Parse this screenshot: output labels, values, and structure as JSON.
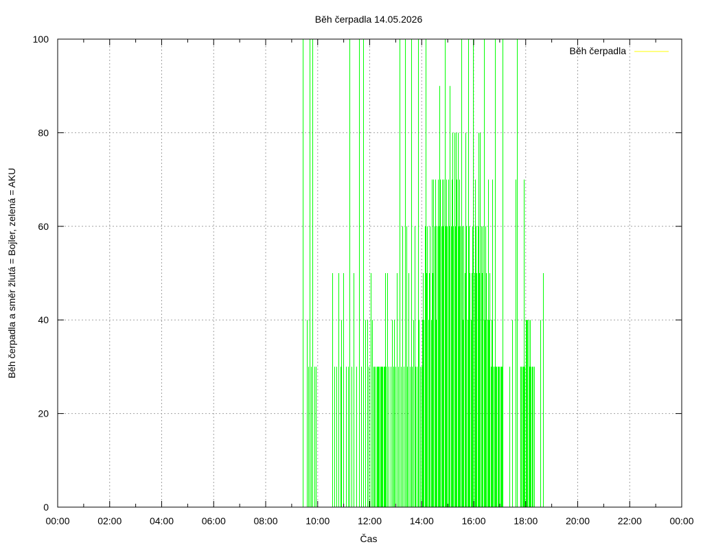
{
  "chart_data": {
    "type": "bar",
    "title": "Běh čerpadla 14.05.2026",
    "xlabel": "Čas",
    "ylabel": "Běh čerpadla a směr žlutá = Bojler, zelená = AKU",
    "xlim_hours": [
      0,
      24
    ],
    "ylim": [
      0,
      100
    ],
    "x_ticks": [
      "00:00",
      "02:00",
      "04:00",
      "06:00",
      "08:00",
      "10:00",
      "12:00",
      "14:00",
      "16:00",
      "18:00",
      "20:00",
      "22:00",
      "00:00"
    ],
    "y_ticks": [
      "0",
      "20",
      "40",
      "60",
      "80",
      "100"
    ],
    "grid": true,
    "legend": {
      "position": "top-right",
      "entries": [
        {
          "label": "Běh čerpadla",
          "color": "#ffff00"
        }
      ]
    },
    "colors": {
      "bars": "#00ff00",
      "legend_line": "#ffff00",
      "grid": "#a0a0a0"
    },
    "series": [
      {
        "color": "#00ff00",
        "points": [
          [
            "09:25",
            30
          ],
          [
            "09:26",
            100
          ],
          [
            "09:35",
            40
          ],
          [
            "09:39",
            30
          ],
          [
            "09:41",
            100
          ],
          [
            "09:44",
            30
          ],
          [
            "09:47",
            100
          ],
          [
            "09:52",
            30
          ],
          [
            "09:56",
            30
          ],
          [
            "10:34",
            50
          ],
          [
            "10:39",
            30
          ],
          [
            "10:43",
            30
          ],
          [
            "10:48",
            50
          ],
          [
            "10:52",
            30
          ],
          [
            "10:55",
            40
          ],
          [
            "10:59",
            50
          ],
          [
            "11:05",
            30
          ],
          [
            "11:10",
            30
          ],
          [
            "11:14",
            100
          ],
          [
            "11:18",
            30
          ],
          [
            "11:23",
            50
          ],
          [
            "11:29",
            30
          ],
          [
            "11:35",
            100
          ],
          [
            "11:40",
            30
          ],
          [
            "11:45",
            100
          ],
          [
            "11:50",
            40
          ],
          [
            "11:54",
            40
          ],
          [
            "11:58",
            30
          ],
          [
            "12:02",
            50
          ],
          [
            "12:06",
            40
          ],
          [
            "12:09",
            30
          ],
          [
            "12:11",
            30
          ],
          [
            "12:13",
            30
          ],
          [
            "12:16",
            30
          ],
          [
            "12:18",
            30
          ],
          [
            "12:20",
            30
          ],
          [
            "12:22",
            30
          ],
          [
            "12:24",
            30
          ],
          [
            "12:26",
            30
          ],
          [
            "12:28",
            30
          ],
          [
            "12:30",
            30
          ],
          [
            "12:32",
            30
          ],
          [
            "12:34",
            30
          ],
          [
            "12:36",
            50
          ],
          [
            "12:38",
            30
          ],
          [
            "12:41",
            50
          ],
          [
            "12:44",
            30
          ],
          [
            "12:48",
            30
          ],
          [
            "12:51",
            40
          ],
          [
            "12:54",
            30
          ],
          [
            "12:56",
            40
          ],
          [
            "12:59",
            30
          ],
          [
            "13:03",
            50
          ],
          [
            "13:06",
            30
          ],
          [
            "13:09",
            100
          ],
          [
            "13:12",
            30
          ],
          [
            "13:15",
            60
          ],
          [
            "13:18",
            30
          ],
          [
            "13:21",
            100
          ],
          [
            "13:24",
            60
          ],
          [
            "13:27",
            30
          ],
          [
            "13:30",
            50
          ],
          [
            "13:33",
            30
          ],
          [
            "13:36",
            100
          ],
          [
            "13:38",
            30
          ],
          [
            "13:40",
            40
          ],
          [
            "13:43",
            60
          ],
          [
            "13:46",
            30
          ],
          [
            "13:48",
            30
          ],
          [
            "13:51",
            100
          ],
          [
            "13:54",
            40
          ],
          [
            "13:57",
            30
          ],
          [
            "13:59",
            30
          ],
          [
            "14:01",
            40
          ],
          [
            "14:03",
            50
          ],
          [
            "14:05",
            40
          ],
          [
            "14:07",
            60
          ],
          [
            "14:09",
            100
          ],
          [
            "14:11",
            50
          ],
          [
            "14:13",
            60
          ],
          [
            "14:15",
            40
          ],
          [
            "14:17",
            50
          ],
          [
            "14:19",
            60
          ],
          [
            "14:21",
            40
          ],
          [
            "14:23",
            70
          ],
          [
            "14:25",
            50
          ],
          [
            "14:27",
            70
          ],
          [
            "14:29",
            60
          ],
          [
            "14:31",
            70
          ],
          [
            "14:33",
            40
          ],
          [
            "14:35",
            60
          ],
          [
            "14:37",
            70
          ],
          [
            "14:39",
            60
          ],
          [
            "14:41",
            90
          ],
          [
            "14:43",
            70
          ],
          [
            "14:45",
            60
          ],
          [
            "14:47",
            70
          ],
          [
            "14:49",
            60
          ],
          [
            "14:51",
            70
          ],
          [
            "14:53",
            100
          ],
          [
            "14:55",
            60
          ],
          [
            "14:57",
            70
          ],
          [
            "14:59",
            60
          ],
          [
            "15:01",
            70
          ],
          [
            "15:03",
            60
          ],
          [
            "15:05",
            90
          ],
          [
            "15:07",
            60
          ],
          [
            "15:09",
            70
          ],
          [
            "15:11",
            80
          ],
          [
            "15:13",
            60
          ],
          [
            "15:15",
            80
          ],
          [
            "15:17",
            60
          ],
          [
            "15:19",
            80
          ],
          [
            "15:21",
            70
          ],
          [
            "15:23",
            80
          ],
          [
            "15:25",
            60
          ],
          [
            "15:27",
            70
          ],
          [
            "15:29",
            60
          ],
          [
            "15:31",
            100
          ],
          [
            "15:33",
            60
          ],
          [
            "15:35",
            40
          ],
          [
            "15:37",
            60
          ],
          [
            "15:39",
            50
          ],
          [
            "15:41",
            80
          ],
          [
            "15:43",
            60
          ],
          [
            "15:45",
            40
          ],
          [
            "15:47",
            100
          ],
          [
            "15:49",
            60
          ],
          [
            "15:51",
            50
          ],
          [
            "15:53",
            40
          ],
          [
            "15:55",
            50
          ],
          [
            "15:57",
            60
          ],
          [
            "15:59",
            100
          ],
          [
            "16:01",
            50
          ],
          [
            "16:03",
            70
          ],
          [
            "16:05",
            60
          ],
          [
            "16:07",
            50
          ],
          [
            "16:09",
            60
          ],
          [
            "16:11",
            80
          ],
          [
            "16:13",
            50
          ],
          [
            "16:15",
            80
          ],
          [
            "16:17",
            60
          ],
          [
            "16:19",
            50
          ],
          [
            "16:21",
            60
          ],
          [
            "16:23",
            100
          ],
          [
            "16:25",
            40
          ],
          [
            "16:27",
            60
          ],
          [
            "16:29",
            50
          ],
          [
            "16:31",
            40
          ],
          [
            "16:33",
            70
          ],
          [
            "16:35",
            40
          ],
          [
            "16:37",
            50
          ],
          [
            "16:39",
            30
          ],
          [
            "16:41",
            40
          ],
          [
            "16:43",
            70
          ],
          [
            "16:45",
            30
          ],
          [
            "16:47",
            30
          ],
          [
            "16:49",
            100
          ],
          [
            "16:51",
            30
          ],
          [
            "16:53",
            30
          ],
          [
            "16:55",
            30
          ],
          [
            "16:57",
            30
          ],
          [
            "16:59",
            30
          ],
          [
            "17:01",
            30
          ],
          [
            "17:03",
            30
          ],
          [
            "17:05",
            30
          ],
          [
            "17:07",
            100
          ],
          [
            "17:22",
            30
          ],
          [
            "17:28",
            40
          ],
          [
            "17:37",
            70
          ],
          [
            "17:40",
            100
          ],
          [
            "17:48",
            30
          ],
          [
            "17:50",
            30
          ],
          [
            "17:52",
            30
          ],
          [
            "17:54",
            30
          ],
          [
            "17:56",
            70
          ],
          [
            "17:58",
            30
          ],
          [
            "18:00",
            40
          ],
          [
            "18:02",
            40
          ],
          [
            "18:04",
            40
          ],
          [
            "18:06",
            40
          ],
          [
            "18:08",
            30
          ],
          [
            "18:10",
            40
          ],
          [
            "18:12",
            30
          ],
          [
            "18:14",
            30
          ],
          [
            "18:16",
            30
          ],
          [
            "18:20",
            30
          ],
          [
            "18:34",
            40
          ],
          [
            "18:40",
            50
          ]
        ]
      }
    ]
  }
}
